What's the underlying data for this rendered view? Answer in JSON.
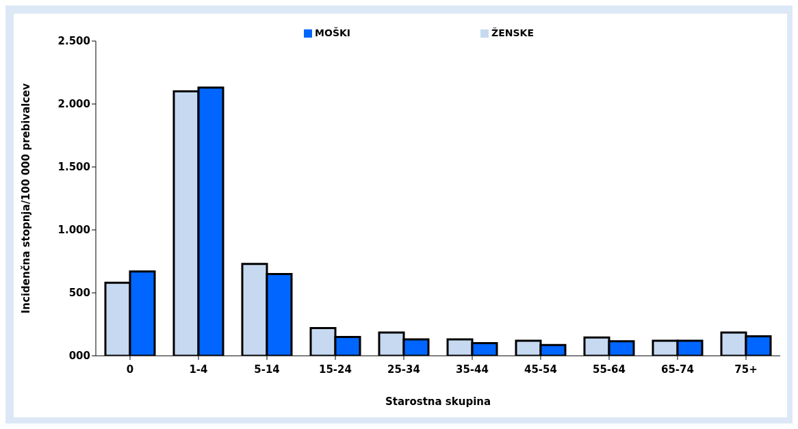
{
  "chart_data": {
    "type": "bar",
    "xlabel": "Starostna skupina",
    "ylabel": "Incidenčna stopnja/100 000 prebivalcev",
    "categories": [
      "0",
      "1-4",
      "5-14",
      "15-24",
      "25-34",
      "35-44",
      "45-54",
      "55-64",
      "65-74",
      "75+"
    ],
    "series": [
      {
        "name": "ŽENSKE",
        "color": "#c6d9f1",
        "values": [
          580,
          2100,
          730,
          220,
          185,
          130,
          120,
          145,
          120,
          185
        ]
      },
      {
        "name": "MOŠKI",
        "color": "#0066ff",
        "values": [
          670,
          2130,
          650,
          150,
          130,
          100,
          85,
          115,
          120,
          155
        ]
      }
    ],
    "ylim": [
      0,
      2500
    ],
    "yticks": [
      {
        "value": 0,
        "label": "000"
      },
      500,
      {
        "value": 1000,
        "label": "1.000"
      },
      {
        "value": 1500,
        "label": "1.500"
      },
      {
        "value": 2000,
        "label": "2.000"
      },
      {
        "value": 2500,
        "label": "2.500"
      }
    ],
    "grid": false,
    "legend": "top right"
  }
}
